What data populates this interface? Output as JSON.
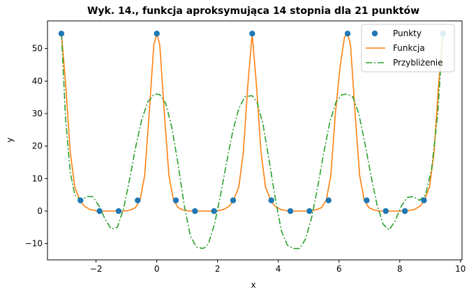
{
  "chart_data": {
    "type": "line",
    "title": "Wyk. 14., funkcja aproksymująca 14 stopnia dla 21 punktów",
    "xlabel": "x",
    "ylabel": "y",
    "xlim": [
      -3.6,
      10.05
    ],
    "ylim": [
      -15.0,
      58.5
    ],
    "xticks": [
      -2,
      0,
      2,
      4,
      6,
      8,
      10
    ],
    "yticks": [
      -10,
      0,
      10,
      20,
      30,
      40,
      50
    ],
    "grid": false,
    "legend_position": "top-right",
    "series": [
      {
        "name": "Punkty",
        "kind": "scatter",
        "color": "#1f77b4",
        "x": [
          -3.1416,
          -2.5133,
          -1.885,
          -1.2566,
          -0.6283,
          0.0,
          0.6283,
          1.2566,
          1.885,
          2.5133,
          3.1416,
          3.7699,
          4.3982,
          5.0265,
          5.6549,
          6.2832,
          6.9115,
          7.5398,
          8.1681,
          8.7965,
          9.4248
        ],
        "y": [
          54.6,
          3.3,
          0.0,
          0.0,
          3.3,
          54.6,
          3.3,
          0.0,
          0.0,
          3.3,
          54.6,
          3.3,
          0.0,
          0.0,
          3.3,
          54.6,
          3.3,
          0.0,
          0.0,
          3.3,
          54.6
        ]
      },
      {
        "name": "Funkcja",
        "kind": "line",
        "color": "#ff7f0e",
        "x": [
          -3.14,
          -3.0,
          -2.85,
          -2.7,
          -2.55,
          -2.4,
          -2.2,
          -2.0,
          -1.8,
          -1.6,
          -1.4,
          -1.2,
          -1.0,
          -0.85,
          -0.7,
          -0.55,
          -0.4,
          -0.25,
          -0.1,
          0.0,
          0.1,
          0.25,
          0.4,
          0.55,
          0.7,
          0.85,
          1.0,
          1.2,
          1.4,
          1.6,
          1.8,
          2.0,
          2.2,
          2.4,
          2.55,
          2.7,
          2.85,
          3.0,
          3.14,
          3.28,
          3.43,
          3.58,
          3.73,
          3.88,
          4.08,
          4.28,
          4.48,
          4.68,
          4.88,
          5.08,
          5.28,
          5.43,
          5.58,
          5.73,
          5.88,
          6.03,
          6.18,
          6.28,
          6.38,
          6.53,
          6.68,
          6.83,
          6.98,
          7.13,
          7.28,
          7.48,
          7.68,
          7.88,
          8.08,
          8.28,
          8.48,
          8.68,
          8.83,
          8.98,
          9.13,
          9.28,
          9.42
        ],
        "y": [
          54.4,
          39.0,
          18.2,
          7.4,
          3.8,
          1.6,
          0.5,
          0.1,
          0.0,
          0.0,
          0.0,
          0.0,
          0.1,
          0.4,
          1.1,
          3.4,
          10.9,
          30.0,
          51.0,
          54.6,
          51.0,
          30.0,
          10.9,
          3.4,
          1.1,
          0.4,
          0.1,
          0.0,
          0.0,
          0.0,
          0.0,
          0.1,
          0.5,
          1.6,
          3.8,
          7.4,
          18.2,
          39.0,
          54.4,
          39.0,
          18.2,
          7.4,
          3.8,
          1.6,
          0.5,
          0.1,
          0.0,
          0.0,
          0.0,
          0.1,
          0.5,
          1.1,
          3.4,
          10.9,
          30.0,
          44.0,
          53.5,
          54.6,
          51.0,
          30.0,
          10.9,
          3.4,
          1.1,
          0.4,
          0.1,
          0.0,
          0.0,
          0.0,
          0.0,
          0.1,
          0.5,
          1.6,
          3.8,
          7.4,
          18.2,
          39.0,
          54.4
        ]
      },
      {
        "name": "Przybliżenie",
        "kind": "line",
        "dash": "dashdot",
        "color": "#2ca02c",
        "x": [
          -3.14,
          -3.0,
          -2.85,
          -2.7,
          -2.5,
          -2.3,
          -2.1,
          -1.9,
          -1.7,
          -1.5,
          -1.3,
          -1.1,
          -0.9,
          -0.7,
          -0.5,
          -0.3,
          -0.1,
          0.0,
          0.1,
          0.3,
          0.5,
          0.7,
          0.9,
          1.1,
          1.3,
          1.5,
          1.57,
          1.7,
          1.9,
          2.1,
          2.3,
          2.5,
          2.7,
          2.9,
          3.14,
          3.3,
          3.5,
          3.7,
          3.9,
          4.1,
          4.3,
          4.5,
          4.71,
          4.9,
          5.1,
          5.3,
          5.5,
          5.7,
          5.9,
          6.1,
          6.28,
          6.45,
          6.65,
          6.85,
          7.05,
          7.25,
          7.45,
          7.65,
          7.85,
          8.05,
          8.25,
          8.45,
          8.65,
          8.85,
          9.05,
          9.25,
          9.42
        ],
        "y": [
          54.6,
          28.0,
          12.0,
          5.0,
          3.3,
          4.5,
          4.4,
          1.5,
          -2.5,
          -5.5,
          -5.0,
          0.5,
          9.5,
          19.5,
          28.0,
          33.5,
          35.8,
          36.0,
          35.8,
          33.0,
          25.5,
          14.5,
          2.0,
          -7.5,
          -11.0,
          -11.5,
          -11.3,
          -10.0,
          -4.0,
          5.0,
          15.0,
          24.5,
          31.5,
          35.2,
          35.5,
          33.5,
          26.5,
          15.5,
          4.0,
          -6.0,
          -10.5,
          -11.5,
          -11.5,
          -8.5,
          -2.0,
          7.5,
          18.0,
          27.5,
          33.5,
          35.8,
          36.0,
          35.2,
          30.0,
          21.0,
          11.0,
          2.0,
          -4.0,
          -5.8,
          -3.0,
          1.5,
          4.2,
          4.5,
          3.3,
          5.0,
          13.0,
          30.0,
          54.6
        ]
      }
    ]
  }
}
